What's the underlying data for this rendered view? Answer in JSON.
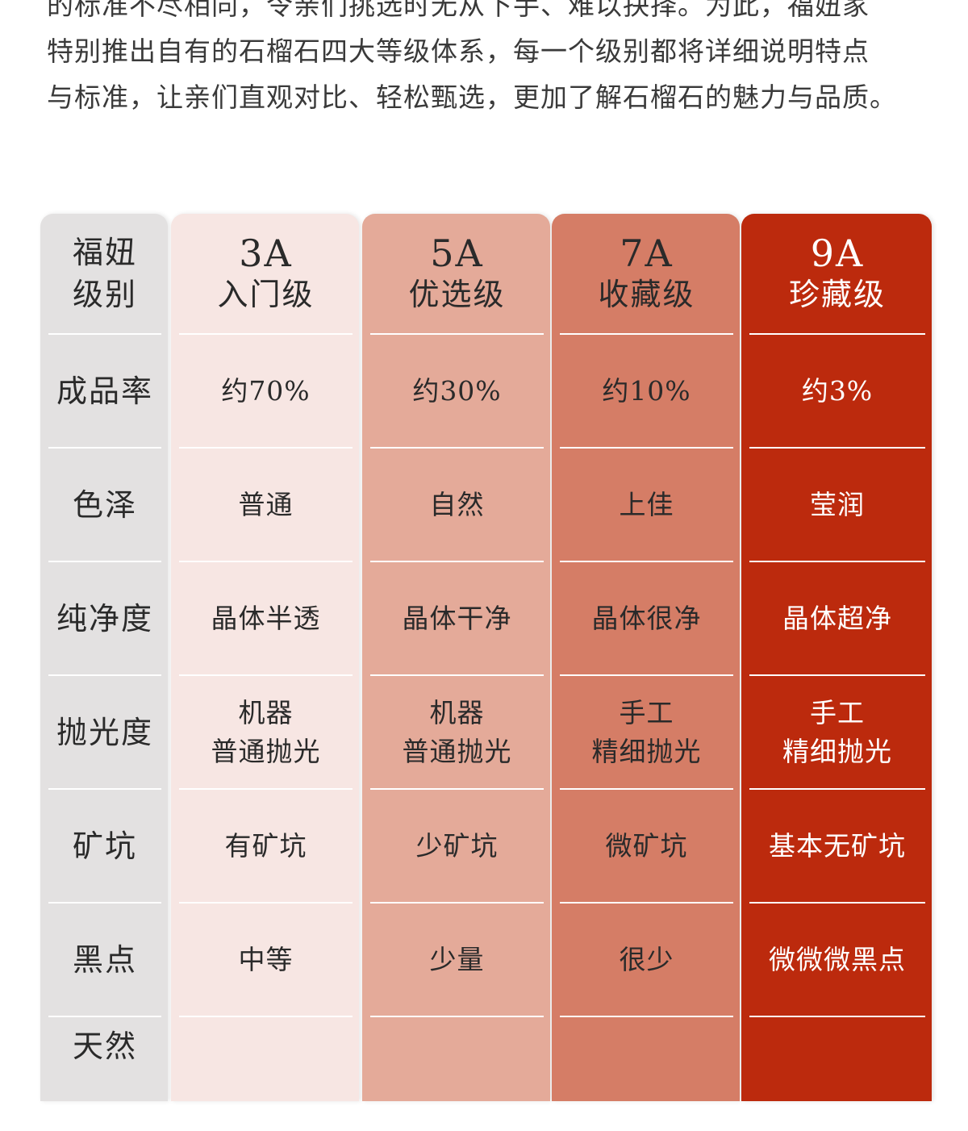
{
  "intro": {
    "lines": [
      "的标准不尽相同，令亲们挑选时无从下手、难以抉择。为此，福妞家",
      "特别推出自有的石榴石四大等级体系，每一个级别都将详细说明特点",
      "与标准，让亲们直观对比、轻松甄选，更加了解石榴石的魅力与品质。"
    ]
  },
  "table": {
    "header_label": [
      "福妞",
      "级别"
    ],
    "row_labels": [
      "成品率",
      "色泽",
      "纯净度",
      "抛光度",
      "矿坑",
      "黑点",
      "天然"
    ],
    "grades": [
      {
        "grade": "3A",
        "name": "入门级",
        "values": [
          "约70%",
          "普通",
          "晶体半透",
          [
            "机器",
            "普通抛光"
          ],
          "有矿坑",
          "中等",
          ""
        ]
      },
      {
        "grade": "5A",
        "name": "优选级",
        "values": [
          "约30%",
          "自然",
          "晶体干净",
          [
            "机器",
            "普通抛光"
          ],
          "少矿坑",
          "少量",
          ""
        ]
      },
      {
        "grade": "7A",
        "name": "收藏级",
        "values": [
          "约10%",
          "上佳",
          "晶体很净",
          [
            "手工",
            "精细抛光"
          ],
          "微矿坑",
          "很少",
          ""
        ]
      },
      {
        "grade": "9A",
        "name": "珍藏级",
        "values": [
          "约3%",
          "莹润",
          "晶体超净",
          [
            "手工",
            "精细抛光"
          ],
          "基本无矿坑",
          "微微微黑点",
          ""
        ]
      }
    ]
  },
  "colors": {
    "label_col": "#e3e1e1",
    "grade_3a": "#f7e6e3",
    "grade_5a": "#e4aa99",
    "grade_7a": "#d57d66",
    "grade_9a": "#bc2a0d"
  }
}
